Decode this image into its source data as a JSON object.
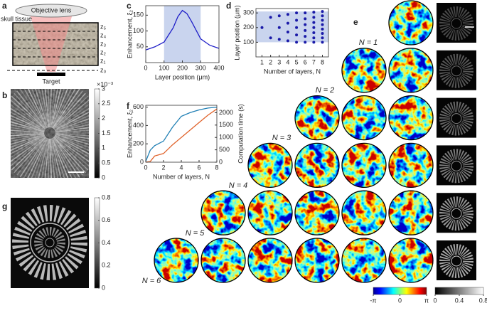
{
  "panel_a": {
    "label": "a",
    "lens": "Objective lens",
    "tissue": "skull tissue",
    "layers": [
      "z₅",
      "z₄",
      "z₃",
      "z₂",
      "z₁"
    ],
    "focal": "z₀",
    "target": "Target"
  },
  "panel_b": {
    "label": "b",
    "colorbar": {
      "exponent": "×10⁻³",
      "lim": [
        0,
        3
      ],
      "ticks": [
        0,
        0.5,
        1,
        1.5,
        2,
        2.5,
        3
      ]
    }
  },
  "panel_g": {
    "label": "g",
    "colorbar": {
      "lim": [
        0,
        0.8
      ],
      "ticks": [
        0,
        0.2,
        0.4,
        0.6,
        0.8
      ]
    }
  },
  "panel_e": {
    "label": "e",
    "rows": [
      "N = 1",
      "N = 2",
      "N = 3",
      "N = 4",
      "N = 5",
      "N = 6"
    ],
    "phase_colorbar": {
      "lim": [
        -3.1416,
        3.1416
      ],
      "ticks": [
        {
          "value": -3.1416,
          "label": "-π"
        },
        0,
        {
          "value": 3.1416,
          "label": "π"
        }
      ]
    },
    "intensity_colorbar": {
      "lim": [
        0,
        0.8
      ],
      "ticks": [
        0,
        0.4,
        0.8
      ]
    }
  },
  "chart_data": [
    {
      "type": "line",
      "label": "c",
      "xlabel": "Layer position (μm)",
      "ylabel": "Enhancement, ξ₂",
      "x": [
        0,
        50,
        100,
        150,
        175,
        200,
        225,
        250,
        300,
        350,
        400
      ],
      "values": [
        40,
        50,
        65,
        110,
        145,
        165,
        155,
        130,
        75,
        55,
        45
      ],
      "color": "#1f1fc8",
      "highlight": [
        100,
        300
      ],
      "xlim": [
        0,
        400
      ],
      "xticks": [
        0,
        100,
        200,
        300,
        400
      ],
      "ylim": [
        0,
        180
      ],
      "yticks": [
        50,
        100,
        150
      ]
    },
    {
      "type": "scatter",
      "label": "d",
      "xlabel": "Number of layers, N",
      "ylabel": "Layer position (μm)",
      "x": [
        1,
        2,
        2,
        3,
        3,
        3,
        4,
        4,
        4,
        4,
        5,
        5,
        5,
        5,
        5,
        6,
        6,
        6,
        6,
        6,
        6,
        7,
        7,
        7,
        7,
        7,
        7,
        7,
        8,
        8,
        8,
        8,
        8,
        8,
        8,
        8
      ],
      "y": [
        200,
        270,
        130,
        280,
        200,
        120,
        290,
        230,
        170,
        110,
        300,
        250,
        200,
        150,
        100,
        300,
        260,
        220,
        180,
        140,
        100,
        305,
        270,
        235,
        200,
        165,
        130,
        100,
        310,
        280,
        250,
        220,
        190,
        160,
        130,
        100
      ],
      "color": "#1a1aa8",
      "highlight": [
        100,
        310
      ],
      "xlim": [
        0.3,
        8.7
      ],
      "xticks": [
        1,
        2,
        3,
        4,
        5,
        6,
        7,
        8
      ],
      "ylim": [
        0,
        330
      ],
      "yticks": [
        100,
        200,
        300
      ]
    },
    {
      "type": "dual_line",
      "label": "f",
      "xlabel": "Number of layers, N",
      "ylabel": "Enhancement, ξ₂",
      "y2label": "Computation time (s)",
      "x": [
        0,
        0.5,
        1,
        2,
        3,
        4,
        5,
        6,
        7,
        8
      ],
      "series": [
        {
          "color": "#1f7fb4",
          "values": [
            10,
            130,
            180,
            230,
            380,
            500,
            540,
            570,
            590,
            600
          ]
        },
        {
          "color": "#e0622a",
          "axis": "y2",
          "values": [
            0,
            30,
            250,
            350,
            700,
            1000,
            1300,
            1600,
            1900,
            2150
          ]
        }
      ],
      "xlim": [
        0,
        8
      ],
      "xticks": [
        0,
        2,
        4,
        6,
        8
      ],
      "ylim": [
        0,
        620
      ],
      "yticks": [
        0,
        200,
        400,
        600
      ],
      "y2lim": [
        0,
        2300
      ],
      "y2ticks": [
        0,
        500,
        1000,
        1500,
        2000
      ]
    }
  ]
}
